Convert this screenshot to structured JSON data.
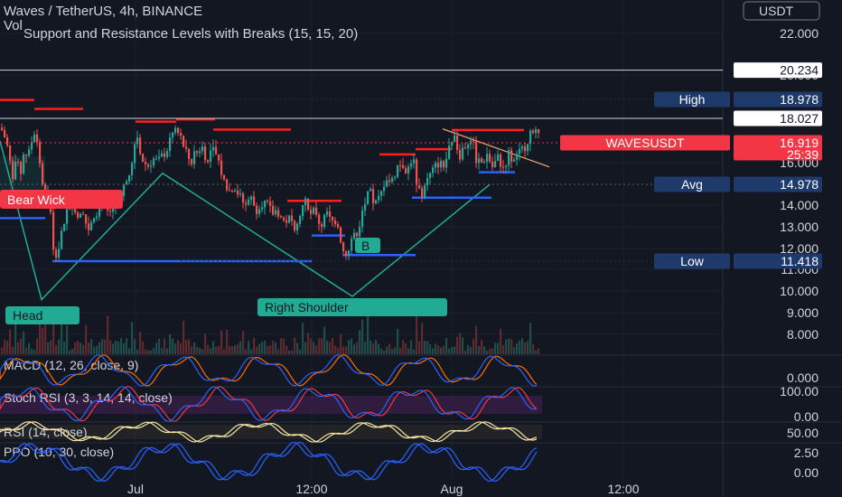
{
  "header": {
    "title": "Waves / TetherUS, 4h, BINANCE",
    "volume_label": "Vol",
    "indicator_label": "Support and Resistance Levels with Breaks (15, 15, 20)",
    "currency_button": "USDT"
  },
  "colors": {
    "background": "#131722",
    "up": "#26a69a",
    "down": "#ef5350",
    "support": "#2962ff",
    "resistance": "#ff1f1f",
    "pattern": "#22ab94",
    "info_badge": "#1e3a6b",
    "price_badge": "#f23645"
  },
  "chart_data": {
    "type": "candlestick",
    "symbol": "WAVESUSDT",
    "y_ticks": [
      "22.000",
      "20.000",
      "16.000",
      "14.000",
      "13.000",
      "12.000",
      "11.000",
      "10.000",
      "9.000",
      "8.000"
    ],
    "x_ticks": [
      "Jul",
      "12:00",
      "Aug",
      "12:00"
    ],
    "price_levels": [
      {
        "label": "",
        "value": "20.234"
      },
      {
        "label": "High",
        "value": "18.978"
      },
      {
        "label": "",
        "value": "18.027"
      },
      {
        "label": "WAVESUSDT",
        "value": "16.919",
        "countdown": "25:39"
      },
      {
        "label": "Avg",
        "value": "14.978"
      },
      {
        "label": "Low",
        "value": "11.418"
      }
    ],
    "close_path": [
      [
        0,
        17.6
      ],
      [
        6,
        17.0
      ],
      [
        10,
        16.0
      ],
      [
        14,
        15.2
      ],
      [
        18,
        16.4
      ],
      [
        22,
        15.6
      ],
      [
        26,
        16.6
      ],
      [
        30,
        16.2
      ],
      [
        34,
        17.0
      ],
      [
        38,
        17.6
      ],
      [
        42,
        16.4
      ],
      [
        46,
        15.0
      ],
      [
        50,
        14.6
      ],
      [
        54,
        14.2
      ],
      [
        58,
        12.0
      ],
      [
        62,
        11.8
      ],
      [
        66,
        12.6
      ],
      [
        72,
        13.6
      ],
      [
        78,
        14.2
      ],
      [
        84,
        13.4
      ],
      [
        90,
        14.0
      ],
      [
        96,
        12.8
      ],
      [
        102,
        13.6
      ],
      [
        108,
        13.8
      ],
      [
        114,
        14.2
      ],
      [
        120,
        13.6
      ],
      [
        126,
        14.0
      ],
      [
        132,
        14.6
      ],
      [
        138,
        15.0
      ],
      [
        144,
        15.6
      ],
      [
        150,
        17.4
      ],
      [
        156,
        16.2
      ],
      [
        162,
        15.8
      ],
      [
        168,
        16.2
      ],
      [
        174,
        16.0
      ],
      [
        180,
        16.4
      ],
      [
        186,
        16.8
      ],
      [
        192,
        17.6
      ],
      [
        198,
        17.2
      ],
      [
        204,
        16.6
      ],
      [
        210,
        16.0
      ],
      [
        216,
        16.4
      ],
      [
        222,
        16.8
      ],
      [
        228,
        16.2
      ],
      [
        234,
        16.6
      ],
      [
        240,
        16.2
      ],
      [
        246,
        15.2
      ],
      [
        252,
        14.6
      ],
      [
        258,
        15.0
      ],
      [
        264,
        14.4
      ],
      [
        270,
        14.0
      ],
      [
        276,
        14.4
      ],
      [
        282,
        13.8
      ],
      [
        288,
        14.2
      ],
      [
        294,
        14.0
      ],
      [
        300,
        13.6
      ],
      [
        306,
        13.8
      ],
      [
        312,
        13.2
      ],
      [
        318,
        13.4
      ],
      [
        324,
        13.0
      ],
      [
        330,
        13.6
      ],
      [
        336,
        14.2
      ],
      [
        342,
        13.4
      ],
      [
        348,
        13.8
      ],
      [
        354,
        13.0
      ],
      [
        360,
        13.6
      ],
      [
        366,
        13.2
      ],
      [
        372,
        13.4
      ],
      [
        378,
        12.0
      ],
      [
        384,
        11.8
      ],
      [
        390,
        12.4
      ],
      [
        396,
        13.0
      ],
      [
        402,
        14.0
      ],
      [
        408,
        14.6
      ],
      [
        414,
        14.0
      ],
      [
        420,
        14.4
      ],
      [
        426,
        15.4
      ],
      [
        432,
        15.0
      ],
      [
        438,
        15.8
      ],
      [
        444,
        16.0
      ],
      [
        450,
        15.6
      ],
      [
        456,
        16.4
      ],
      [
        460,
        14.8
      ],
      [
        466,
        14.6
      ],
      [
        472,
        15.2
      ],
      [
        478,
        15.6
      ],
      [
        484,
        16.0
      ],
      [
        490,
        15.8
      ],
      [
        496,
        16.6
      ],
      [
        502,
        17.0
      ],
      [
        508,
        16.4
      ],
      [
        514,
        16.8
      ],
      [
        520,
        17.2
      ],
      [
        526,
        16.2
      ],
      [
        532,
        16.0
      ],
      [
        538,
        16.4
      ],
      [
        544,
        15.8
      ],
      [
        550,
        16.2
      ],
      [
        556,
        15.8
      ],
      [
        562,
        16.4
      ],
      [
        568,
        16.0
      ],
      [
        574,
        16.4
      ],
      [
        580,
        16.8
      ],
      [
        586,
        17.4
      ],
      [
        592,
        17.8
      ],
      [
        596,
        16.92
      ]
    ],
    "resistance_segments": [
      {
        "x0": 0,
        "x1": 38,
        "y": 18.95
      },
      {
        "x0": 38,
        "x1": 92,
        "y": 18.5
      },
      {
        "x0": 150,
        "x1": 195,
        "y": 17.88
      },
      {
        "x0": 195,
        "x1": 238,
        "y": 17.98
      },
      {
        "x0": 236,
        "x1": 322,
        "y": 17.52
      },
      {
        "x0": 318,
        "x1": 378,
        "y": 14.2
      },
      {
        "x0": 420,
        "x1": 460,
        "y": 16.38
      },
      {
        "x0": 460,
        "x1": 500,
        "y": 16.62
      },
      {
        "x0": 500,
        "x1": 580,
        "y": 17.5
      }
    ],
    "support_segments": [
      {
        "x0": 0,
        "x1": 50,
        "y": 13.4
      },
      {
        "x0": 58,
        "x1": 345,
        "y": 11.418
      },
      {
        "x0": 345,
        "x1": 382,
        "y": 12.6
      },
      {
        "x0": 380,
        "x1": 460,
        "y": 11.7
      },
      {
        "x0": 456,
        "x1": 544,
        "y": 14.35
      },
      {
        "x0": 530,
        "x1": 570,
        "y": 15.55
      }
    ],
    "pattern_path": [
      [
        0,
        17.0
      ],
      [
        46,
        9.6
      ],
      [
        180,
        15.5
      ],
      [
        390,
        9.75
      ],
      [
        542,
        14.97
      ]
    ],
    "trendline": [
      [
        490,
        17.55
      ],
      [
        608,
        15.8
      ]
    ],
    "annotations": {
      "bear_wick": "Bear Wick",
      "head": "Head",
      "right_shoulder": "Right Shoulder",
      "break_label": "B"
    },
    "indicators": [
      {
        "name": "MACD",
        "label": "MACD (12, 26, close, 9)",
        "ticks": [
          "0.000"
        ]
      },
      {
        "name": "StochRSI",
        "label": "Stoch RSI (3, 3, 14, 14, close)",
        "ticks": [
          "100.00",
          "0.00"
        ]
      },
      {
        "name": "RSI",
        "label": "RSI (14, close)",
        "ticks": [
          "50.00"
        ]
      },
      {
        "name": "PPO",
        "label": "PPO (10, 30, close)",
        "ticks": [
          "2.50",
          "0.00"
        ]
      }
    ]
  }
}
